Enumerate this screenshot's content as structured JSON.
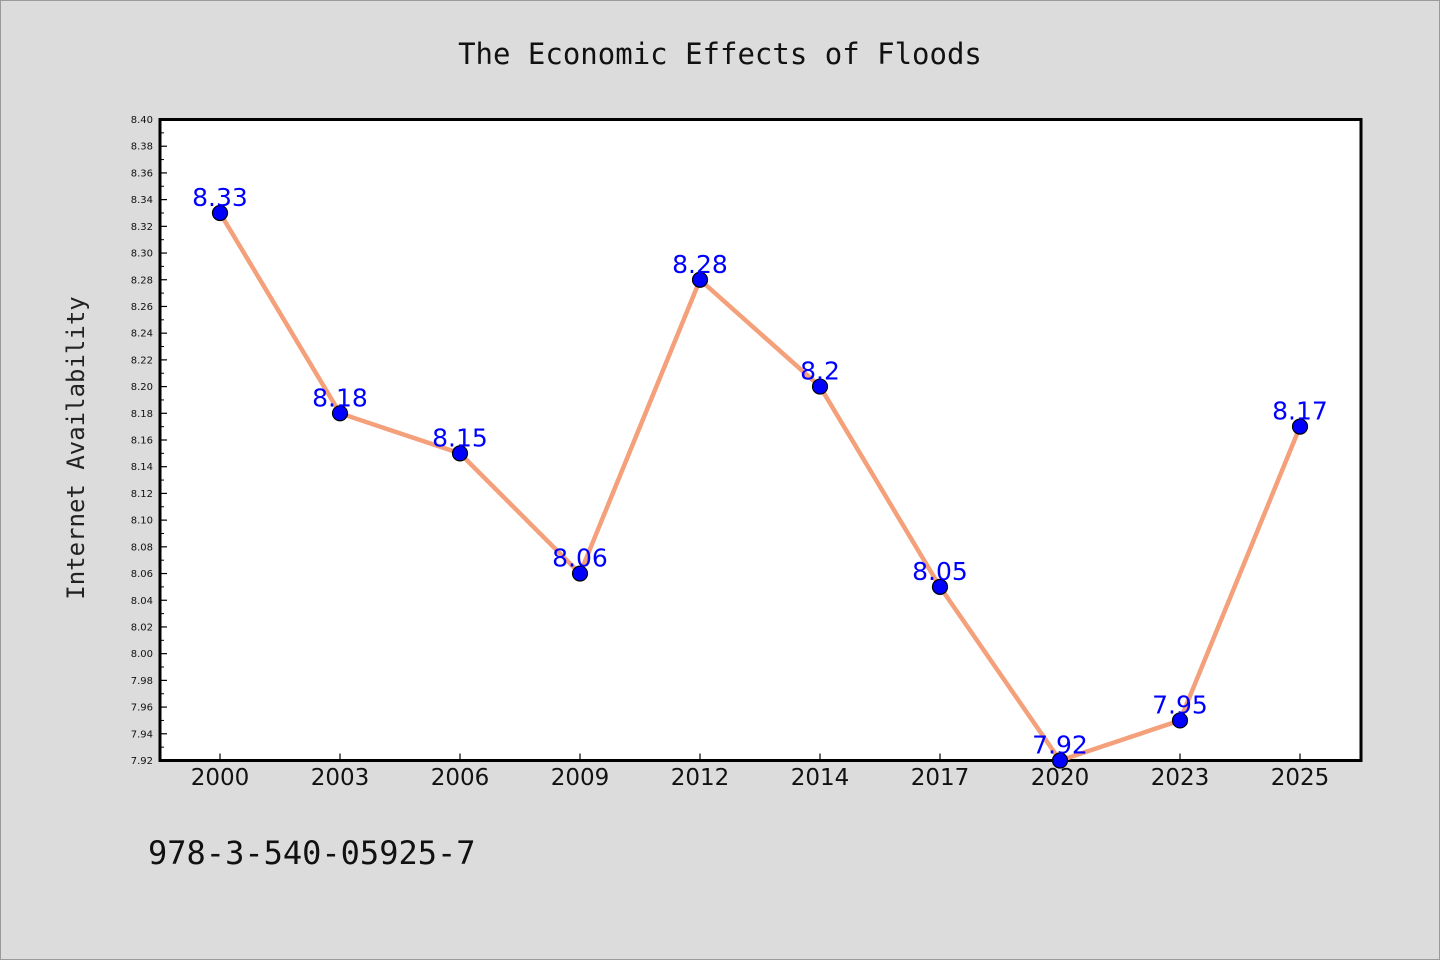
{
  "chart_data": {
    "type": "line",
    "title": "The Economic Effects of Floods",
    "xlabel": "",
    "ylabel": "Internet Availability",
    "categories": [
      "2000",
      "2003",
      "2006",
      "2009",
      "2012",
      "2014",
      "2017",
      "2020",
      "2023",
      "2025"
    ],
    "series": [
      {
        "values": [
          8.33,
          8.18,
          8.15,
          8.06,
          8.28,
          8.2,
          8.05,
          7.92,
          7.95,
          8.17
        ],
        "labels": [
          "8.33",
          "8.18",
          "8.15",
          "8.06",
          "8.28",
          "8.2",
          "8.05",
          "7.92",
          "7.95",
          "8.17"
        ]
      }
    ],
    "ylim": [
      7.92,
      8.4
    ],
    "yticks": [
      "7.92",
      "7.94",
      "7.96",
      "7.98",
      "8.00",
      "8.02",
      "8.04",
      "8.06",
      "8.08",
      "8.10",
      "8.12",
      "8.14",
      "8.16",
      "8.18",
      "8.20",
      "8.22",
      "8.24",
      "8.26",
      "8.28",
      "8.30",
      "8.32",
      "8.34",
      "8.36",
      "8.38",
      "8.40"
    ],
    "grid": false,
    "legend": "none",
    "colors": {
      "line": "#f4a07a",
      "marker": "#0000ff",
      "marker_edge": "#000000",
      "data_label": "#0000ff",
      "background": "#dcdcdc",
      "plot_background": "#ffffff"
    }
  },
  "footnote": "978-3-540-05925-7"
}
